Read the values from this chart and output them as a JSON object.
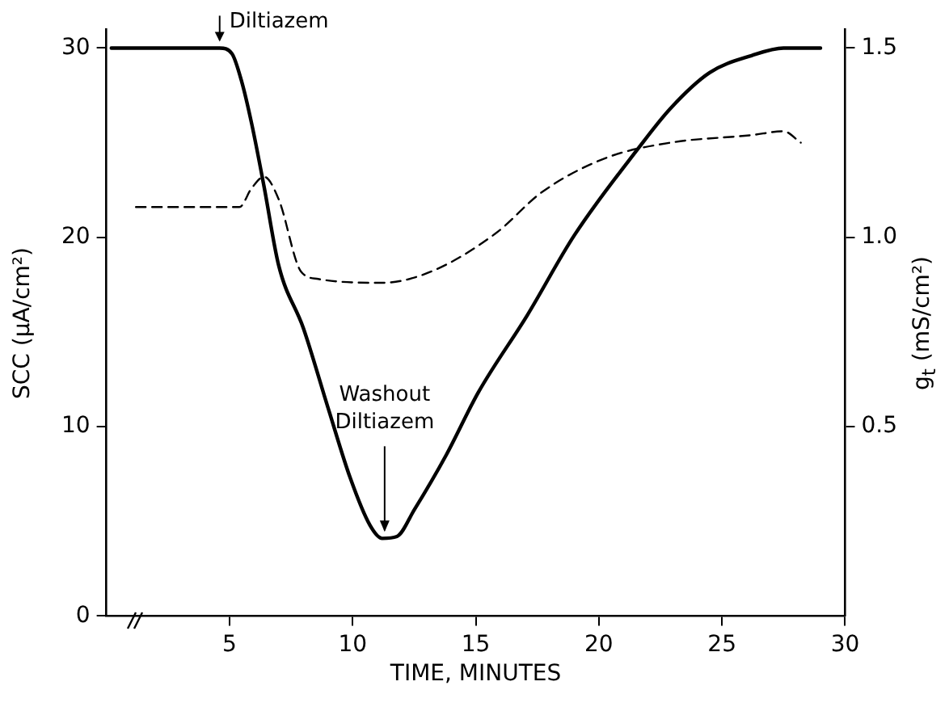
{
  "chart_data": {
    "type": "line",
    "xlabel": "TIME, MINUTES",
    "ylabel": "SCC (μA/cm²)",
    "y2label": "g$_{t}$ (mS/cm²)",
    "xlim": [
      0,
      30
    ],
    "xticks": [
      5,
      10,
      15,
      20,
      25,
      30
    ],
    "ylim": [
      0,
      31
    ],
    "yticks": [
      0,
      10,
      20,
      30
    ],
    "y2lim": [
      0,
      1.55
    ],
    "y2ticks": [
      0.5,
      {
        "value": 1,
        "label": "1.0"
      },
      1.5
    ],
    "grid": false,
    "legend": false,
    "marker": "none",
    "series": [
      {
        "color": "#000000",
        "line_style": "solid",
        "x": [
          0.2,
          4.6,
          5.1,
          5.5,
          5.9,
          6.4,
          7.0,
          8.0,
          9.0,
          9.9,
          10.7,
          11.2,
          11.8,
          12.5,
          13.8,
          15.1,
          17.1,
          19.0,
          21.6,
          22.9,
          24.5,
          26.2,
          27.5,
          29
        ],
        "values": [
          30,
          30,
          29.7,
          28.2,
          26,
          22.7,
          18.5,
          15.2,
          11,
          7.3,
          4.8,
          4.1,
          4.2,
          5.6,
          8.5,
          11.8,
          15.9,
          20.1,
          24.7,
          26.8,
          28.7,
          29.6,
          30,
          30
        ]
      },
      {
        "color": "#000000",
        "line_style": "dashed",
        "axis": "y2",
        "x": [
          1.2,
          5.4,
          5.9,
          6.4,
          7.0,
          7.9,
          8.6,
          11.2,
          13.2,
          15.8,
          17.7,
          20.3,
          22.9,
          26.2,
          27.5,
          28.2
        ],
        "values": [
          1.08,
          1.08,
          1.13,
          1.16,
          1.1,
          0.91,
          0.89,
          0.88,
          0.91,
          1.01,
          1.12,
          1.21,
          1.25,
          1.27,
          1.28,
          1.25
        ]
      }
    ],
    "annotations": [
      {
        "text": "Diltiazem",
        "x": 4.6,
        "y": 30
      },
      {
        "text": "Washout Diltiazem",
        "x": 11.3,
        "y": 4.1
      }
    ]
  }
}
